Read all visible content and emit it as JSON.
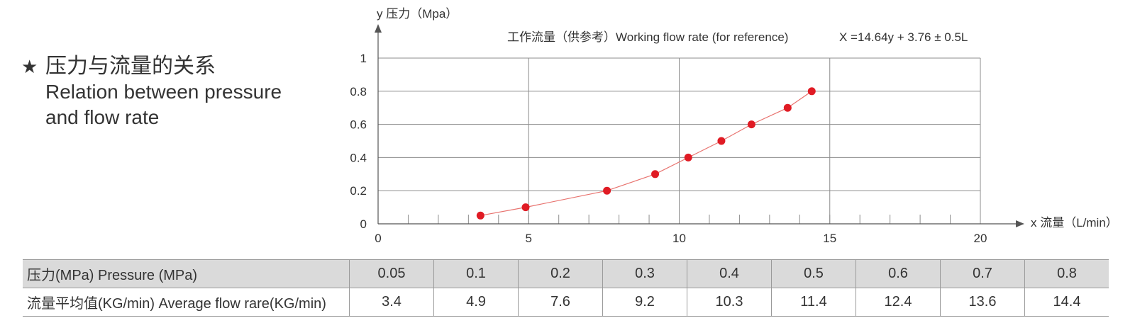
{
  "heading": {
    "star": "★",
    "title_cn": "压力与流量的关系",
    "title_en_line1": "Relation between pressure",
    "title_en_line2": "and flow rate"
  },
  "chart_data": {
    "type": "line",
    "title": "工作流量（供参考）Working flow rate (for reference)",
    "formula": "X =14.64y + 3.76 ± 0.5L",
    "xlabel": "x 流量（L/min）",
    "ylabel": "y 压力（Mpa）",
    "xlim": [
      0,
      20
    ],
    "ylim": [
      0,
      1
    ],
    "x_ticks": [
      0,
      5,
      10,
      15,
      20
    ],
    "y_ticks": [
      0,
      0.2,
      0.4,
      0.6,
      0.8,
      1
    ],
    "grid": true,
    "marker_color": "#e01b24",
    "line_color": "#e8736f",
    "series": [
      {
        "x": [
          3.4,
          4.9,
          7.6,
          9.2,
          10.3,
          11.4,
          12.4,
          13.6,
          14.4
        ],
        "y": [
          0.05,
          0.1,
          0.2,
          0.3,
          0.4,
          0.5,
          0.6,
          0.7,
          0.8
        ]
      }
    ]
  },
  "table": {
    "rows": [
      {
        "label": "压力(MPa) Pressure (MPa)",
        "values": [
          "0.05",
          "0.1",
          "0.2",
          "0.3",
          "0.4",
          "0.5",
          "0.6",
          "0.7",
          "0.8"
        ]
      },
      {
        "label": "流量平均值(KG/min) Average flow rare(KG/min)",
        "values": [
          "3.4",
          "4.9",
          "7.6",
          "9.2",
          "10.3",
          "11.4",
          "12.4",
          "13.6",
          "14.4"
        ]
      }
    ]
  }
}
